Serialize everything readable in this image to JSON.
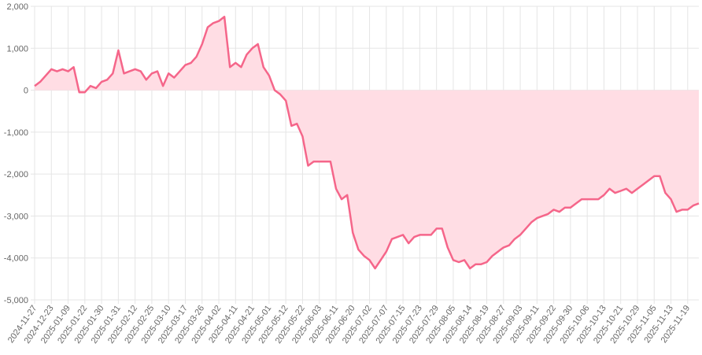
{
  "chart_data": {
    "type": "line",
    "categories": [
      "2024-11-27",
      null,
      null,
      "2024-12-23",
      null,
      null,
      "2025-01-09",
      null,
      null,
      "2025-01-22",
      null,
      null,
      "2025-01-30",
      null,
      null,
      "2025-01-31",
      null,
      null,
      "2025-02-12",
      null,
      null,
      "2025-02-25",
      null,
      null,
      "2025-03-10",
      null,
      null,
      "2025-03-17",
      null,
      null,
      "2025-03-26",
      null,
      null,
      "2025-04-02",
      null,
      null,
      "2025-04-11",
      null,
      null,
      "2025-04-21",
      null,
      null,
      "2025-05-01",
      null,
      null,
      "2025-05-12",
      null,
      null,
      "2025-05-22",
      null,
      null,
      "2025-06-03",
      null,
      null,
      "2025-06-11",
      null,
      null,
      "2025-06-20",
      null,
      null,
      "2025-07-02",
      null,
      null,
      "2025-07-07",
      null,
      null,
      "2025-07-15",
      null,
      null,
      "2025-07-23",
      null,
      null,
      "2025-07-29",
      null,
      null,
      "2025-08-05",
      null,
      null,
      "2025-08-14",
      null,
      null,
      "2025-08-19",
      null,
      null,
      "2025-08-27",
      null,
      null,
      "2025-09-03",
      null,
      null,
      "2025-09-11",
      null,
      null,
      "2025-09-22",
      null,
      null,
      "2025-09-30",
      null,
      null,
      "2025-10-06",
      null,
      null,
      "2025-10-13",
      null,
      null,
      "2025-10-21",
      null,
      null,
      "2025-10-29",
      null,
      null,
      "2025-11-05",
      null,
      null,
      "2025-11-13",
      null,
      null,
      "2025-11-19",
      null,
      null
    ],
    "series": [
      {
        "color": "#f5668a",
        "fill": "#ffdde4",
        "values": [
          100,
          200,
          350,
          500,
          450,
          500,
          450,
          550,
          -50,
          -50,
          100,
          50,
          200,
          250,
          400,
          950,
          400,
          450,
          500,
          450,
          250,
          400,
          450,
          100,
          400,
          300,
          450,
          600,
          650,
          800,
          1100,
          1500,
          1600,
          1650,
          1750,
          550,
          650,
          550,
          850,
          1000,
          1100,
          550,
          350,
          0,
          -100,
          -250,
          -850,
          -800,
          -1100,
          -1800,
          -1700,
          -1700,
          -1700,
          -1700,
          -2350,
          -2600,
          -2500,
          -3400,
          -3800,
          -3950,
          -4050,
          -4250,
          -4050,
          -3850,
          -3550,
          -3500,
          -3450,
          -3650,
          -3500,
          -3450,
          -3450,
          -3450,
          -3300,
          -3300,
          -3750,
          -4050,
          -4100,
          -4050,
          -4250,
          -4150,
          -4150,
          -4100,
          -3950,
          -3850,
          -3750,
          -3700,
          -3550,
          -3450,
          -3300,
          -3150,
          -3050,
          -3000,
          -2950,
          -2850,
          -2900,
          -2800,
          -2800,
          -2700,
          -2600,
          -2600,
          -2600,
          -2600,
          -2500,
          -2350,
          -2450,
          -2400,
          -2350,
          -2450,
          -2350,
          -2250,
          -2150,
          -2050,
          -2050,
          -2450,
          -2600,
          -2900,
          -2850,
          -2850,
          -2750,
          -2700
        ]
      }
    ],
    "ylim": [
      -5000,
      2000
    ],
    "yticks": [
      {
        "value": -5000,
        "label": "-5,000"
      },
      {
        "value": -4000,
        "label": "-4,000"
      },
      {
        "value": -3000,
        "label": "-3,000"
      },
      {
        "value": -2000,
        "label": "-2,000"
      },
      {
        "value": -1000,
        "label": "-1,000"
      },
      0,
      {
        "value": 1000,
        "label": "1,000"
      },
      {
        "value": 2000,
        "label": "2,000"
      }
    ],
    "grid": true
  }
}
